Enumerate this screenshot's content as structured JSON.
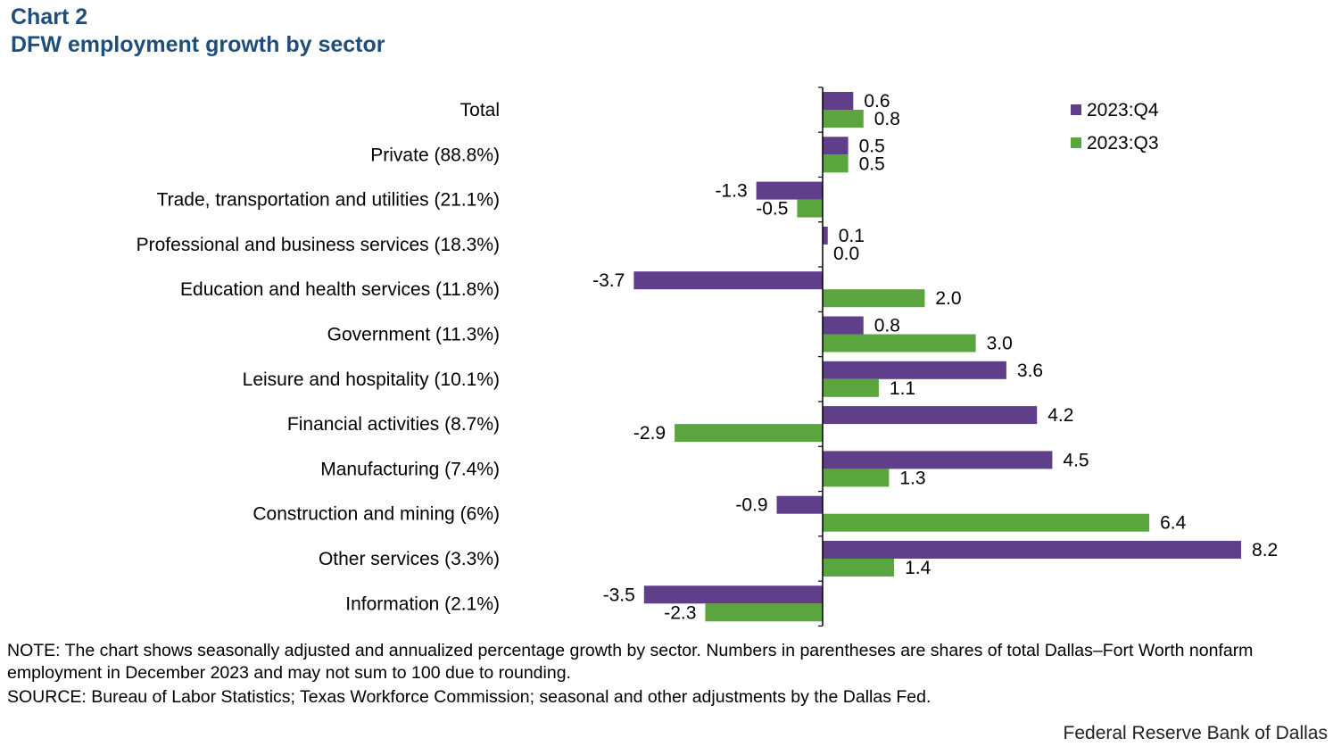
{
  "heading": {
    "chart_number": "Chart 2",
    "title": "DFW employment growth by sector"
  },
  "chart_data": {
    "type": "bar",
    "orientation": "horizontal",
    "title": "DFW employment growth by sector",
    "xlabel": "",
    "ylabel": "",
    "categories": [
      "Total",
      "Private (88.8%)",
      "Trade, transportation and utilities (21.1%)",
      "Professional and business services (18.3%)",
      "Education and health services (11.8%)",
      "Government (11.3%)",
      "Leisure and hospitality (10.1%)",
      "Financial activities (8.7%)",
      "Manufacturing (7.4%)",
      "Construction and mining (6%)",
      "Other services (3.3%)",
      "Information (2.1%)"
    ],
    "series": [
      {
        "name": "2023:Q4",
        "color": "#5f3f8a",
        "values": [
          0.6,
          0.5,
          -1.3,
          0.1,
          -3.7,
          0.8,
          3.6,
          4.2,
          4.5,
          -0.9,
          8.2,
          -3.5
        ],
        "labels": [
          "0.6",
          "0.5",
          "-1.3",
          "0.1",
          "-3.7",
          "0.8",
          "3.6",
          "4.2",
          "4.5",
          "-0.9",
          "8.2",
          "-3.5"
        ]
      },
      {
        "name": "2023:Q3",
        "color": "#5aa53d",
        "values": [
          0.8,
          0.5,
          -0.5,
          0.0,
          2.0,
          3.0,
          1.1,
          -2.9,
          1.3,
          6.4,
          1.4,
          -2.3
        ],
        "labels": [
          "0.8",
          "0.5",
          "-0.5",
          "0.0",
          "2.0",
          "3.0",
          "1.1",
          "-2.9",
          "1.3",
          "6.4",
          "1.4",
          "-2.3"
        ]
      }
    ],
    "xlim": [
      -3.7,
      8.2
    ],
    "grid": false,
    "legend": "top-right"
  },
  "notes": {
    "note": "NOTE: The chart shows seasonally adjusted and annualized percentage growth by sector. Numbers in parentheses are shares of total Dallas–Fort Worth nonfarm employment in December 2023 and may not sum to 100 due to rounding.",
    "source": "SOURCE: Bureau of Labor Statistics; Texas Workforce Commission; seasonal and other adjustments by the Dallas Fed."
  },
  "footer": {
    "brand": "Federal Reserve Bank of Dallas"
  }
}
